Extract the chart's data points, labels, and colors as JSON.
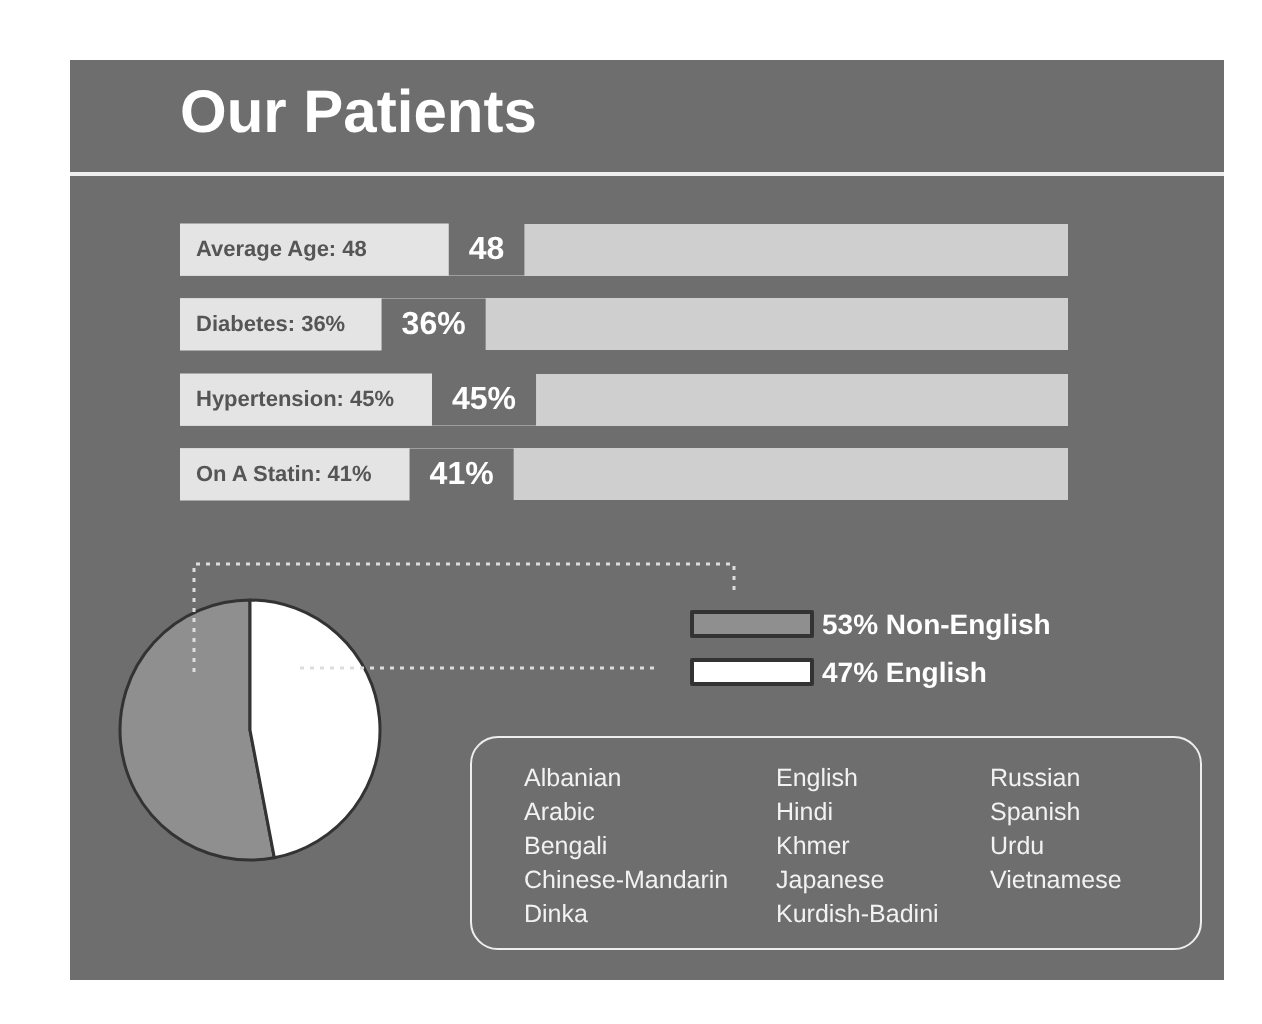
{
  "chart_data": [
    {
      "type": "bar",
      "title": "Our Patients",
      "orientation": "horizontal",
      "categories": [
        "Average Age: 48",
        "Diabetes: 36%",
        "Hypertension: 45%",
        "On A Statin: 41%"
      ],
      "values": [
        48,
        36,
        45,
        41
      ],
      "value_labels": [
        "48",
        "36%",
        "45%",
        "41%"
      ],
      "color": "#e4e4e4"
    },
    {
      "type": "pie",
      "categories": [
        "Non-English",
        "English"
      ],
      "values": [
        53,
        47
      ],
      "value_labels": [
        "53%",
        "47%"
      ],
      "colors": [
        "#8f8f8f",
        "#ffffff"
      ],
      "legend": "right"
    },
    {
      "type": "other",
      "annotations": [
        "Albanian",
        "Arabic",
        "Bengali",
        "Chinese-Mandarin",
        "Dinka",
        "English",
        "Hindi",
        "Khmer",
        "Japanese",
        "Kurdish-Badini",
        "Russian",
        "Spanish",
        "Urdu",
        "Vietnamese"
      ]
    }
  ]
}
